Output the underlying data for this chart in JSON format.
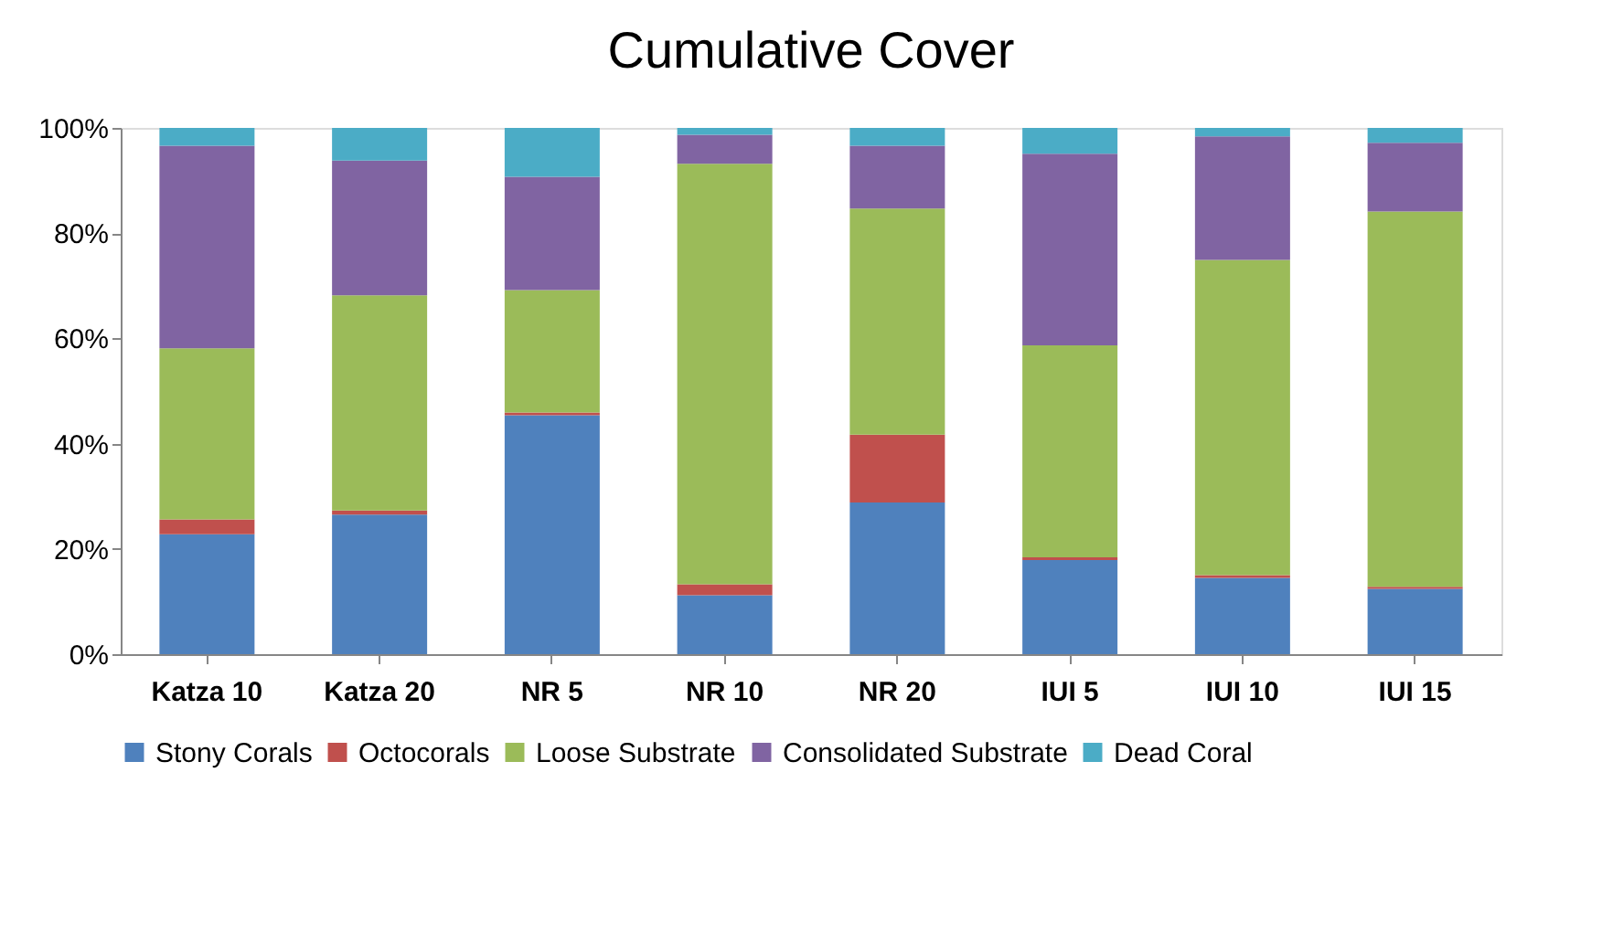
{
  "chart_data": {
    "type": "bar",
    "stacked": true,
    "title": "Cumulative Cover",
    "categories": [
      "Katza 10",
      "Katza 20",
      "NR 5",
      "NR 10",
      "NR 20",
      "IUI 5",
      "IUI 10",
      "IUI 15"
    ],
    "series": [
      {
        "name": "Stony Corals",
        "color": "#4f81bd",
        "values": [
          22.8,
          26.5,
          45.4,
          11.2,
          28.8,
          17.9,
          14.5,
          12.4
        ]
      },
      {
        "name": "Octocorals",
        "color": "#c0504d",
        "values": [
          2.8,
          0.8,
          0.5,
          2.1,
          12.9,
          0.5,
          0.5,
          0.4
        ]
      },
      {
        "name": "Loose Substrate",
        "color": "#9bbb59",
        "values": [
          32.5,
          40.9,
          23.3,
          79.9,
          43.0,
          40.3,
          59.9,
          71.3
        ]
      },
      {
        "name": "Consolidated Substrate",
        "color": "#8064a2",
        "values": [
          38.5,
          25.6,
          21.5,
          5.5,
          11.9,
          36.4,
          23.5,
          13.1
        ]
      },
      {
        "name": "Dead Coral",
        "color": "#4bacc6",
        "values": [
          3.4,
          6.2,
          9.3,
          1.3,
          3.4,
          4.9,
          1.6,
          2.8
        ]
      }
    ],
    "ylim": [
      0,
      100
    ],
    "yticks": [
      {
        "value": 0,
        "label": "0%"
      },
      {
        "value": 20,
        "label": "20%"
      },
      {
        "value": 40,
        "label": "40%"
      },
      {
        "value": 60,
        "label": "60%"
      },
      {
        "value": 80,
        "label": "80%"
      },
      {
        "value": 100,
        "label": "100%"
      }
    ],
    "grid": false,
    "legend": "bottom"
  }
}
